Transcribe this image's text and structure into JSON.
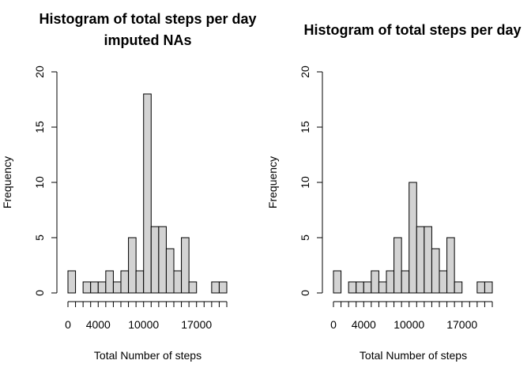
{
  "chart_data": [
    {
      "type": "bar",
      "title": "Histogram of total steps per day\nimputed NAs",
      "xlabel": "Total Number of steps",
      "ylabel": "Frequency",
      "bin_width": 1000,
      "x_start": 0,
      "values": [
        2,
        0,
        1,
        1,
        1,
        2,
        1,
        2,
        5,
        2,
        18,
        6,
        6,
        4,
        2,
        5,
        1,
        0,
        0,
        1,
        1
      ],
      "ylim": [
        0,
        20
      ],
      "y_ticks": [
        0,
        5,
        10,
        15,
        20
      ],
      "x_tick_positions": [
        0,
        4000,
        10000,
        17000
      ],
      "x_tick_labels": [
        "0",
        "4000",
        "10000",
        "17000"
      ],
      "x_minor_ticks": [
        0,
        1000,
        2000,
        3000,
        4000,
        5000,
        6000,
        7000,
        8000,
        9000,
        10000,
        11000,
        12000,
        13000,
        14000,
        15000,
        16000,
        17000,
        18000,
        19000,
        20000,
        21000
      ]
    },
    {
      "type": "bar",
      "title": "Histogram of total steps per day",
      "xlabel": "Total Number of steps",
      "ylabel": "Frequency",
      "bin_width": 1000,
      "x_start": 0,
      "values": [
        2,
        0,
        1,
        1,
        1,
        2,
        1,
        2,
        5,
        2,
        10,
        6,
        6,
        4,
        2,
        5,
        1,
        0,
        0,
        1,
        1
      ],
      "ylim": [
        0,
        20
      ],
      "y_ticks": [
        0,
        5,
        10,
        15,
        20
      ],
      "x_tick_positions": [
        0,
        4000,
        10000,
        17000
      ],
      "x_tick_labels": [
        "0",
        "4000",
        "10000",
        "17000"
      ],
      "x_minor_ticks": [
        0,
        1000,
        2000,
        3000,
        4000,
        5000,
        6000,
        7000,
        8000,
        9000,
        10000,
        11000,
        12000,
        13000,
        14000,
        15000,
        16000,
        17000,
        18000,
        19000,
        20000,
        21000
      ]
    }
  ]
}
